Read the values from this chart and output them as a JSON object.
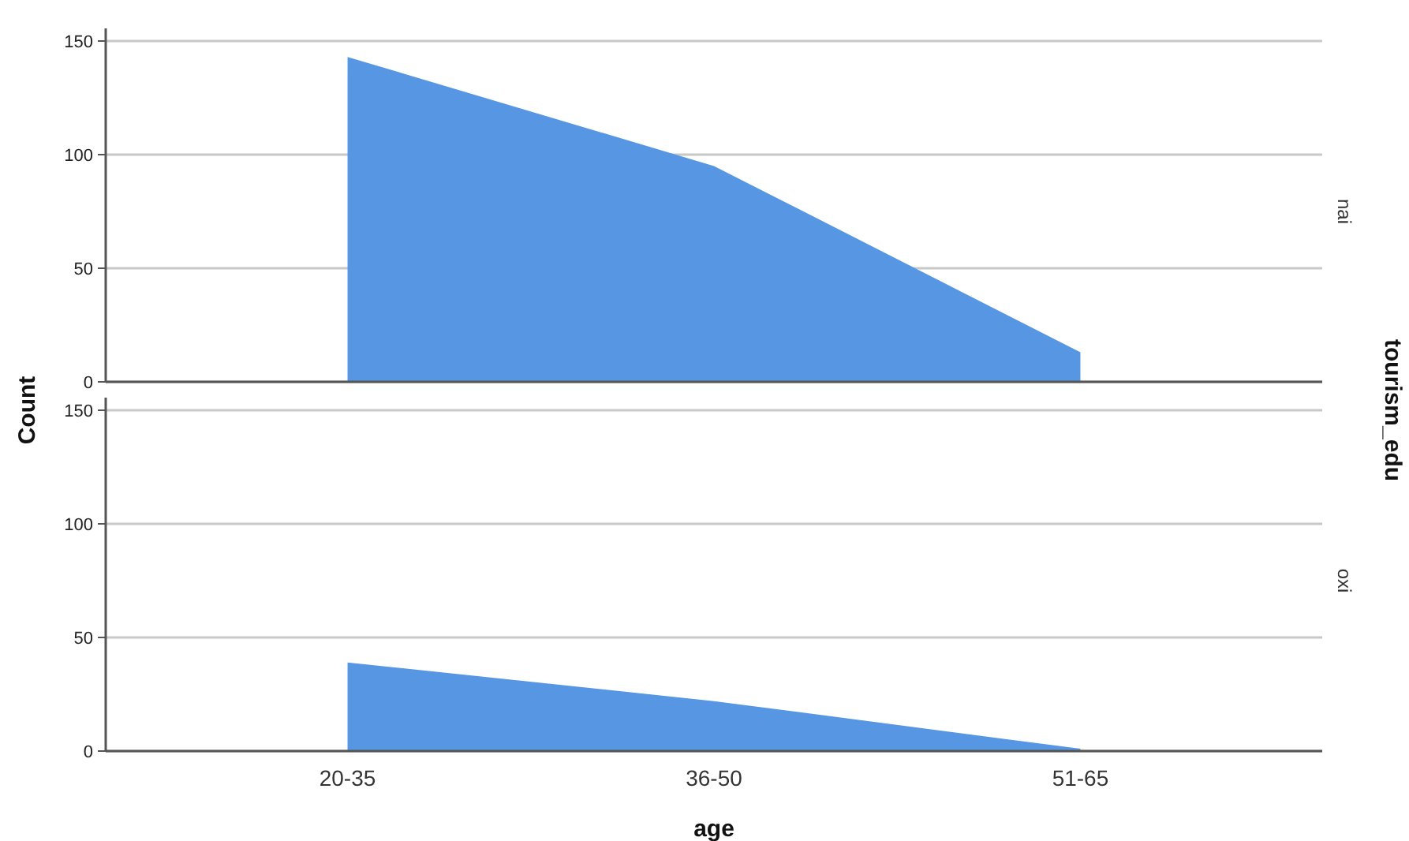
{
  "chart_data": [
    {
      "type": "area",
      "y2label": "nai",
      "categories": [
        null,
        null,
        null
      ],
      "values": [
        143,
        95,
        13
      ],
      "color": "#5696e3",
      "ylim": [
        0,
        150
      ],
      "yticks": [
        0,
        50,
        100,
        150
      ],
      "grid": "y"
    },
    {
      "type": "area",
      "y2label": "oxi",
      "xlabel": "age",
      "ylabel": "Count",
      "annotations": [
        "tourism_edu"
      ],
      "categories": [
        "20-35",
        "36-50",
        "51-65"
      ],
      "values": [
        39,
        22,
        1
      ],
      "color": "#5696e3",
      "ylim": [
        0,
        150
      ],
      "yticks": [
        0,
        50,
        100,
        150
      ],
      "grid": "y"
    }
  ]
}
